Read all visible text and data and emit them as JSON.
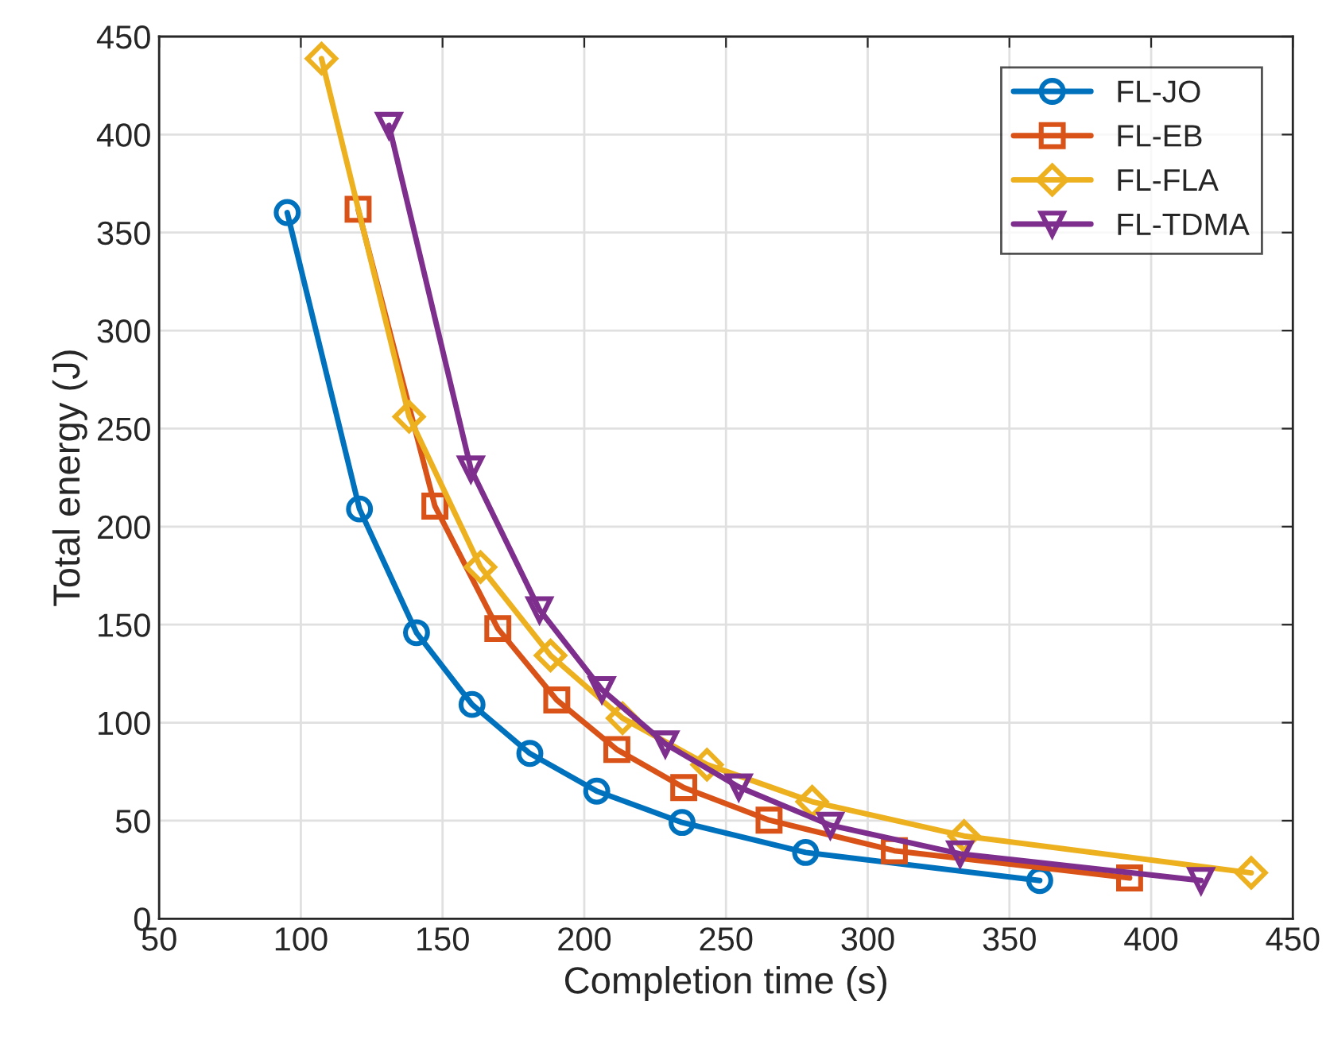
{
  "chart_data": {
    "type": "line",
    "xlabel": "Completion time (s)",
    "ylabel": "Total energy (J)",
    "xlim": [
      50,
      450
    ],
    "xticks": [
      50,
      100,
      150,
      200,
      250,
      300,
      350,
      400,
      450
    ],
    "ylim": [
      0,
      450
    ],
    "yticks": [
      0,
      50,
      100,
      150,
      200,
      250,
      300,
      350,
      400,
      450
    ],
    "grid": true,
    "legend": "top right",
    "line_style": "solid",
    "series": [
      {
        "name": "FL-JO",
        "color": "#0072bd",
        "marker": "circle",
        "x": [
          95.2,
          120.7,
          140.8,
          160.4,
          180.8,
          204.4,
          234.5,
          278.1,
          360.7
        ],
        "values": [
          360.2,
          209.0,
          145.9,
          109.3,
          84.3,
          65.1,
          49.1,
          33.8,
          19.5
        ]
      },
      {
        "name": "FL-EB",
        "color": "#d95319",
        "marker": "square",
        "x": [
          120.2,
          147.3,
          169.5,
          190.3,
          211.5,
          235.1,
          265.2,
          309.4,
          392.4
        ],
        "values": [
          361.9,
          210.5,
          148.0,
          111.6,
          86.3,
          66.9,
          50.3,
          34.7,
          20.8
        ]
      },
      {
        "name": "FL-FLA",
        "color": "#edb120",
        "marker": "diamond",
        "x": [
          107.3,
          138.2,
          163.4,
          188.1,
          213.5,
          243.3,
          280.4,
          334.0,
          435.3
        ],
        "values": [
          438.7,
          256.1,
          179.4,
          134.3,
          102.3,
          78.6,
          59.7,
          42.2,
          23.4
        ]
      },
      {
        "name": "FL-TDMA",
        "color": "#7e2f8e",
        "marker": "triangle_down",
        "x": [
          131.1,
          160.0,
          184.2,
          206.2,
          228.6,
          254.5,
          286.8,
          332.6,
          417.6
        ],
        "values": [
          404.7,
          229.4,
          157.6,
          116.9,
          89.2,
          67.2,
          47.7,
          33.1,
          19.5
        ]
      }
    ]
  }
}
